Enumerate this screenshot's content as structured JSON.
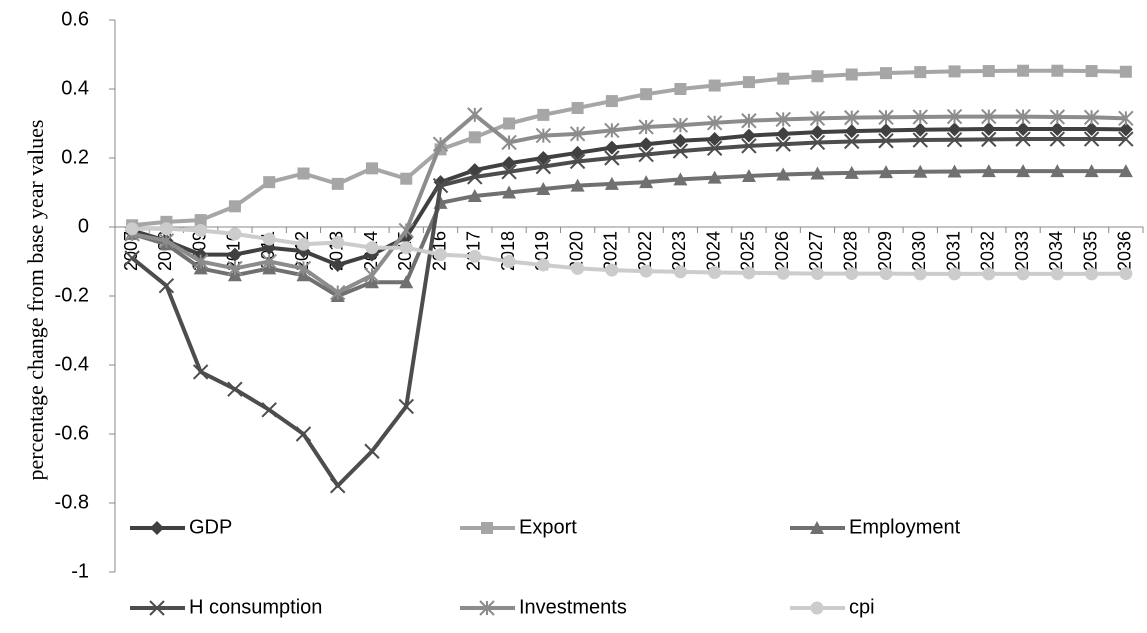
{
  "chart_data": {
    "type": "line",
    "y_label": "percentage change from base year values",
    "categories": [
      "2007",
      "2008",
      "2009",
      "2010",
      "2011",
      "2012",
      "2013",
      "2014",
      "2015",
      "2016",
      "2017",
      "2018",
      "2019",
      "2020",
      "2021",
      "2022",
      "2023",
      "2024",
      "2025",
      "2026",
      "2027",
      "2028",
      "2029",
      "2030",
      "2031",
      "2032",
      "2033",
      "2034",
      "2035",
      "2036"
    ],
    "ylim": [
      -1,
      0.6
    ],
    "yticks": [
      -1,
      -0.8,
      -0.6,
      -0.4,
      -0.2,
      0,
      0.2,
      0.4,
      0.6
    ],
    "series": [
      {
        "name": "GDP",
        "color": "#404040",
        "marker": "diamond",
        "values": [
          -0.01,
          -0.04,
          -0.08,
          -0.08,
          -0.06,
          -0.07,
          -0.11,
          -0.08,
          -0.03,
          0.13,
          0.165,
          0.185,
          0.2,
          0.215,
          0.23,
          0.24,
          0.25,
          0.255,
          0.265,
          0.27,
          0.275,
          0.278,
          0.28,
          0.282,
          0.283,
          0.284,
          0.284,
          0.284,
          0.284,
          0.283
        ]
      },
      {
        "name": "Export",
        "color": "#a6a6a6",
        "marker": "square",
        "values": [
          0.005,
          0.015,
          0.02,
          0.06,
          0.13,
          0.155,
          0.125,
          0.17,
          0.14,
          0.225,
          0.26,
          0.3,
          0.325,
          0.345,
          0.365,
          0.385,
          0.4,
          0.41,
          0.42,
          0.43,
          0.437,
          0.442,
          0.446,
          0.449,
          0.451,
          0.452,
          0.453,
          0.453,
          0.452,
          0.45
        ]
      },
      {
        "name": "Employment",
        "color": "#707070",
        "marker": "triangle",
        "values": [
          -0.02,
          -0.05,
          -0.12,
          -0.14,
          -0.12,
          -0.14,
          -0.2,
          -0.16,
          -0.16,
          0.07,
          0.09,
          0.1,
          0.11,
          0.12,
          0.125,
          0.13,
          0.138,
          0.143,
          0.148,
          0.152,
          0.155,
          0.157,
          0.159,
          0.16,
          0.161,
          0.162,
          0.162,
          0.162,
          0.162,
          0.162
        ]
      },
      {
        "name": "H consumption",
        "color": "#4d4d4d",
        "marker": "x",
        "values": [
          -0.09,
          -0.17,
          -0.42,
          -0.47,
          -0.53,
          -0.6,
          -0.75,
          -0.65,
          -0.52,
          0.12,
          0.145,
          0.16,
          0.175,
          0.19,
          0.2,
          0.21,
          0.22,
          0.228,
          0.235,
          0.24,
          0.245,
          0.248,
          0.25,
          0.252,
          0.253,
          0.254,
          0.255,
          0.255,
          0.255,
          0.255
        ]
      },
      {
        "name": "Investments",
        "color": "#8c8c8c",
        "marker": "asterisk",
        "values": [
          -0.02,
          -0.04,
          -0.1,
          -0.12,
          -0.1,
          -0.12,
          -0.19,
          -0.14,
          -0.01,
          0.24,
          0.325,
          0.245,
          0.265,
          0.27,
          0.28,
          0.29,
          0.295,
          0.302,
          0.308,
          0.312,
          0.315,
          0.317,
          0.318,
          0.319,
          0.32,
          0.32,
          0.32,
          0.319,
          0.318,
          0.315
        ]
      },
      {
        "name": "cpi",
        "color": "#cccccc",
        "marker": "circle",
        "values": [
          -0.005,
          -0.005,
          -0.01,
          -0.02,
          -0.035,
          -0.05,
          -0.045,
          -0.06,
          -0.06,
          -0.08,
          -0.085,
          -0.1,
          -0.11,
          -0.12,
          -0.125,
          -0.128,
          -0.13,
          -0.132,
          -0.133,
          -0.134,
          -0.135,
          -0.135,
          -0.135,
          -0.136,
          -0.136,
          -0.136,
          -0.136,
          -0.136,
          -0.136,
          -0.135
        ]
      }
    ]
  }
}
